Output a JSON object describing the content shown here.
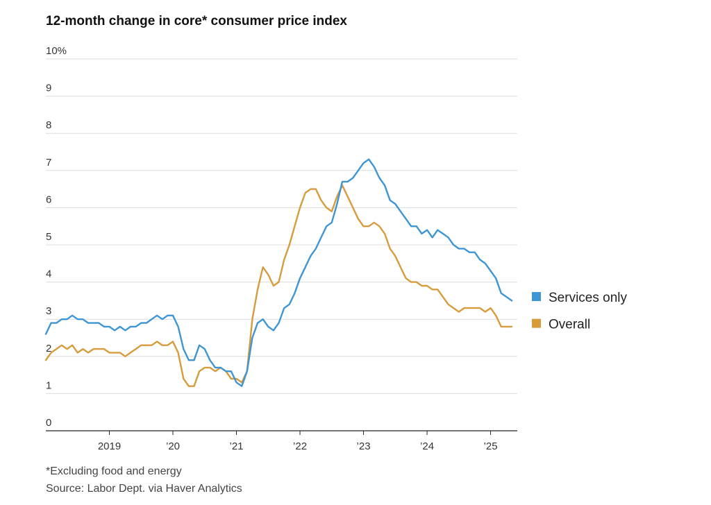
{
  "chart_data": {
    "type": "line",
    "title": "12-month change in core* consumer price index",
    "xlabel": "",
    "ylabel": "",
    "ylim": [
      0,
      10
    ],
    "xlim": [
      2018.0,
      2025.42
    ],
    "y_ticks": [
      {
        "value": 0,
        "label": "0"
      },
      {
        "value": 1,
        "label": "1"
      },
      {
        "value": 2,
        "label": "2"
      },
      {
        "value": 3,
        "label": "3"
      },
      {
        "value": 4,
        "label": "4"
      },
      {
        "value": 5,
        "label": "5"
      },
      {
        "value": 6,
        "label": "6"
      },
      {
        "value": 7,
        "label": "7"
      },
      {
        "value": 8,
        "label": "8"
      },
      {
        "value": 9,
        "label": "9"
      },
      {
        "value": 10,
        "label": "10%"
      }
    ],
    "x_ticks": [
      {
        "value": 2019,
        "label": "2019"
      },
      {
        "value": 2020,
        "label": "’20"
      },
      {
        "value": 2021,
        "label": "’21"
      },
      {
        "value": 2022,
        "label": "’22"
      },
      {
        "value": 2023,
        "label": "’23"
      },
      {
        "value": 2024,
        "label": "’24"
      },
      {
        "value": 2025,
        "label": "’25"
      }
    ],
    "grid": true,
    "legend": "right",
    "series": [
      {
        "name": "Services only",
        "color": "#3d95d4",
        "start": "2018-01",
        "values": [
          2.6,
          2.9,
          2.9,
          3.0,
          3.0,
          3.1,
          3.0,
          3.0,
          2.9,
          2.9,
          2.9,
          2.8,
          2.8,
          2.7,
          2.8,
          2.7,
          2.8,
          2.8,
          2.9,
          2.9,
          3.0,
          3.1,
          3.0,
          3.1,
          3.1,
          2.8,
          2.2,
          1.9,
          1.9,
          2.3,
          2.2,
          1.9,
          1.7,
          1.7,
          1.6,
          1.6,
          1.3,
          1.2,
          1.6,
          2.5,
          2.9,
          3.0,
          2.8,
          2.7,
          2.9,
          3.3,
          3.4,
          3.7,
          4.1,
          4.4,
          4.7,
          4.9,
          5.2,
          5.5,
          5.6,
          6.1,
          6.7,
          6.7,
          6.8,
          7.0,
          7.2,
          7.3,
          7.1,
          6.8,
          6.6,
          6.2,
          6.1,
          5.9,
          5.7,
          5.5,
          5.5,
          5.3,
          5.4,
          5.2,
          5.4,
          5.3,
          5.2,
          5.0,
          4.9,
          4.9,
          4.8,
          4.8,
          4.6,
          4.5,
          4.3,
          4.1,
          3.7,
          3.6,
          3.5
        ]
      },
      {
        "name": "Overall",
        "color": "#d89b3c",
        "start": "2018-01",
        "values": [
          1.9,
          2.1,
          2.2,
          2.3,
          2.2,
          2.3,
          2.1,
          2.2,
          2.1,
          2.2,
          2.2,
          2.2,
          2.1,
          2.1,
          2.1,
          2.0,
          2.1,
          2.2,
          2.3,
          2.3,
          2.3,
          2.4,
          2.3,
          2.3,
          2.4,
          2.1,
          1.4,
          1.2,
          1.2,
          1.6,
          1.7,
          1.7,
          1.6,
          1.7,
          1.6,
          1.4,
          1.4,
          1.3,
          1.6,
          3.0,
          3.8,
          4.4,
          4.2,
          3.9,
          4.0,
          4.6,
          5.0,
          5.5,
          6.0,
          6.4,
          6.5,
          6.5,
          6.2,
          6.0,
          5.9,
          6.3,
          6.6,
          6.3,
          6.0,
          5.7,
          5.5,
          5.5,
          5.6,
          5.5,
          5.3,
          4.9,
          4.7,
          4.4,
          4.1,
          4.0,
          4.0,
          3.9,
          3.9,
          3.8,
          3.8,
          3.6,
          3.4,
          3.3,
          3.2,
          3.3,
          3.3,
          3.3,
          3.3,
          3.2,
          3.3,
          3.1,
          2.8,
          2.8,
          2.8
        ]
      }
    ]
  },
  "notes": {
    "footnote": "*Excluding food and energy",
    "source": "Source: Labor Dept. via Haver Analytics"
  }
}
